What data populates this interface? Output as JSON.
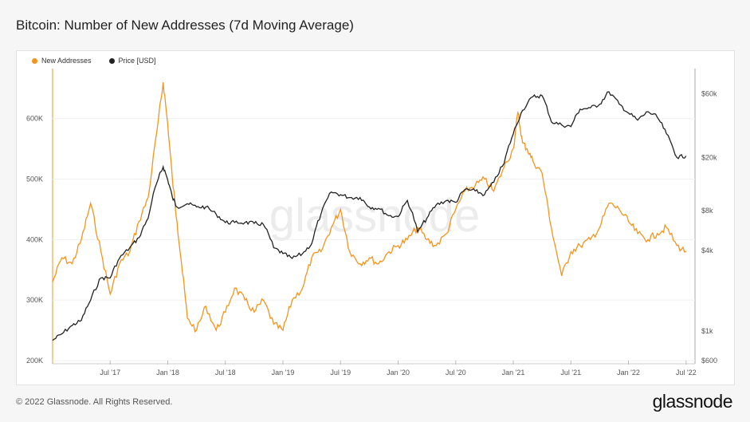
{
  "title": "Bitcoin: Number of New Addresses (7d Moving Average)",
  "footer": "© 2022 Glassnode. All Rights Reserved.",
  "logo": "glassnode",
  "watermark": "glassnode",
  "legend": [
    {
      "label": "New Addresses",
      "color": "#f7931a"
    },
    {
      "label": "Price [USD]",
      "color": "#222222"
    }
  ],
  "chart_data": {
    "type": "line",
    "title": "Bitcoin: Number of New Addresses (7d Moving Average)",
    "x_ticks": [
      "Jul '17",
      "Jan '18",
      "Jul '18",
      "Jan '19",
      "Jul '19",
      "Jan '20",
      "Jul '20",
      "Jan '21",
      "Jul '21",
      "Jan '22",
      "Jul '22"
    ],
    "xlim": [
      "2017-01",
      "2022-07"
    ],
    "y_left": {
      "label": "New Addresses",
      "ticks": [
        "200K",
        "300K",
        "400K",
        "500K",
        "600K"
      ],
      "ylim": [
        200000,
        680000
      ]
    },
    "y_right": {
      "label": "Price [USD]",
      "scale": "log",
      "ticks": [
        "$600",
        "$1k",
        "$4k",
        "$8k",
        "$20k",
        "$60k"
      ],
      "tick_values": [
        600,
        1000,
        4000,
        8000,
        20000,
        60000
      ]
    },
    "series": [
      {
        "name": "New Addresses",
        "axis": "left",
        "x": [
          2017.0,
          2017.08,
          2017.17,
          2017.25,
          2017.33,
          2017.42,
          2017.5,
          2017.58,
          2017.67,
          2017.75,
          2017.83,
          2017.92,
          2017.96,
          2018.0,
          2018.04,
          2018.08,
          2018.12,
          2018.17,
          2018.25,
          2018.33,
          2018.42,
          2018.5,
          2018.58,
          2018.67,
          2018.75,
          2018.83,
          2018.92,
          2019.0,
          2019.08,
          2019.17,
          2019.25,
          2019.33,
          2019.42,
          2019.5,
          2019.58,
          2019.67,
          2019.75,
          2019.83,
          2019.92,
          2020.0,
          2020.08,
          2020.17,
          2020.25,
          2020.33,
          2020.42,
          2020.5,
          2020.58,
          2020.67,
          2020.75,
          2020.83,
          2020.92,
          2021.0,
          2021.04,
          2021.08,
          2021.12,
          2021.17,
          2021.25,
          2021.33,
          2021.42,
          2021.5,
          2021.58,
          2021.67,
          2021.75,
          2021.83,
          2021.92,
          2022.0,
          2022.08,
          2022.17,
          2022.25,
          2022.33,
          2022.42,
          2022.5
        ],
        "values": [
          330000,
          370000,
          360000,
          400000,
          460000,
          380000,
          310000,
          360000,
          380000,
          430000,
          470000,
          600000,
          660000,
          590000,
          500000,
          430000,
          360000,
          270000,
          250000,
          290000,
          250000,
          280000,
          320000,
          300000,
          280000,
          300000,
          260000,
          250000,
          300000,
          320000,
          370000,
          380000,
          420000,
          450000,
          380000,
          360000,
          370000,
          360000,
          380000,
          390000,
          400000,
          420000,
          400000,
          390000,
          410000,
          450000,
          480000,
          490000,
          500000,
          480000,
          520000,
          550000,
          610000,
          560000,
          550000,
          530000,
          510000,
          420000,
          340000,
          380000,
          390000,
          400000,
          420000,
          460000,
          450000,
          430000,
          410000,
          400000,
          410000,
          420000,
          390000,
          380000
        ]
      },
      {
        "name": "Price [USD]",
        "axis": "right",
        "x": [
          2017.0,
          2017.08,
          2017.17,
          2017.25,
          2017.33,
          2017.42,
          2017.5,
          2017.58,
          2017.67,
          2017.75,
          2017.83,
          2017.92,
          2017.96,
          2018.0,
          2018.04,
          2018.08,
          2018.17,
          2018.25,
          2018.33,
          2018.42,
          2018.5,
          2018.58,
          2018.67,
          2018.75,
          2018.83,
          2018.92,
          2019.0,
          2019.08,
          2019.17,
          2019.25,
          2019.33,
          2019.42,
          2019.5,
          2019.58,
          2019.67,
          2019.75,
          2019.83,
          2019.92,
          2020.0,
          2020.08,
          2020.17,
          2020.25,
          2020.33,
          2020.42,
          2020.5,
          2020.58,
          2020.67,
          2020.75,
          2020.83,
          2020.92,
          2021.0,
          2021.08,
          2021.17,
          2021.25,
          2021.33,
          2021.42,
          2021.5,
          2021.58,
          2021.67,
          2021.75,
          2021.83,
          2021.92,
          2022.0,
          2022.08,
          2022.17,
          2022.25,
          2022.33,
          2022.42,
          2022.5
        ],
        "values": [
          850,
          950,
          1100,
          1200,
          1700,
          2500,
          2500,
          3500,
          4200,
          5000,
          7000,
          14000,
          17000,
          13500,
          10000,
          8500,
          9000,
          8500,
          8500,
          7500,
          6500,
          6500,
          6500,
          6400,
          6300,
          4200,
          3800,
          3500,
          3800,
          4500,
          7500,
          11000,
          10500,
          10000,
          10000,
          8500,
          8300,
          7300,
          7200,
          9500,
          5500,
          7000,
          8800,
          9500,
          9200,
          11500,
          11200,
          10500,
          13000,
          18000,
          30000,
          45000,
          57000,
          58000,
          37000,
          35000,
          34000,
          46000,
          47000,
          50000,
          62000,
          50000,
          43000,
          38000,
          44000,
          40000,
          30000,
          20000,
          20500
        ]
      }
    ]
  }
}
